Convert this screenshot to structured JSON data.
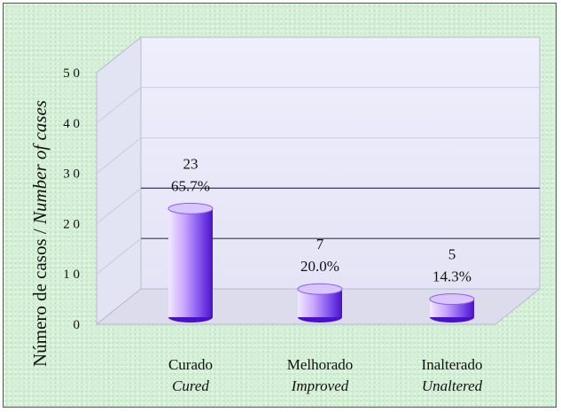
{
  "chart_data": {
    "type": "bar",
    "ylabel_pt": "Número de casos",
    "ylabel_sep": " / ",
    "ylabel_en": "Number of cases",
    "ylim": [
      0,
      50
    ],
    "yticks": [
      {
        "value": 0,
        "label": "0"
      },
      {
        "value": 10,
        "label": "1 0"
      },
      {
        "value": 20,
        "label": "2 0"
      },
      {
        "value": 30,
        "label": "3 0"
      },
      {
        "value": 40,
        "label": "4 0"
      },
      {
        "value": 50,
        "label": "5 0"
      }
    ],
    "categories": [
      {
        "pt": "Curado",
        "en": "Cured"
      },
      {
        "pt": "Melhorado",
        "en": "Improved"
      },
      {
        "pt": "Inalterado",
        "en": "Unaltered"
      }
    ],
    "values": [
      23,
      7,
      5
    ],
    "value_labels": [
      "23",
      "7",
      "5"
    ],
    "percent_labels": [
      "65.7%",
      "20.0%",
      "14.3%"
    ],
    "grid": true,
    "style": "3d",
    "colors": {
      "bar_light": "#f0e6ff",
      "bar_mid": "#9a6cf2",
      "bar_dark": "#5a1ed8",
      "plot_bg": "#ececff",
      "gridline": "#3a3a5a"
    }
  }
}
